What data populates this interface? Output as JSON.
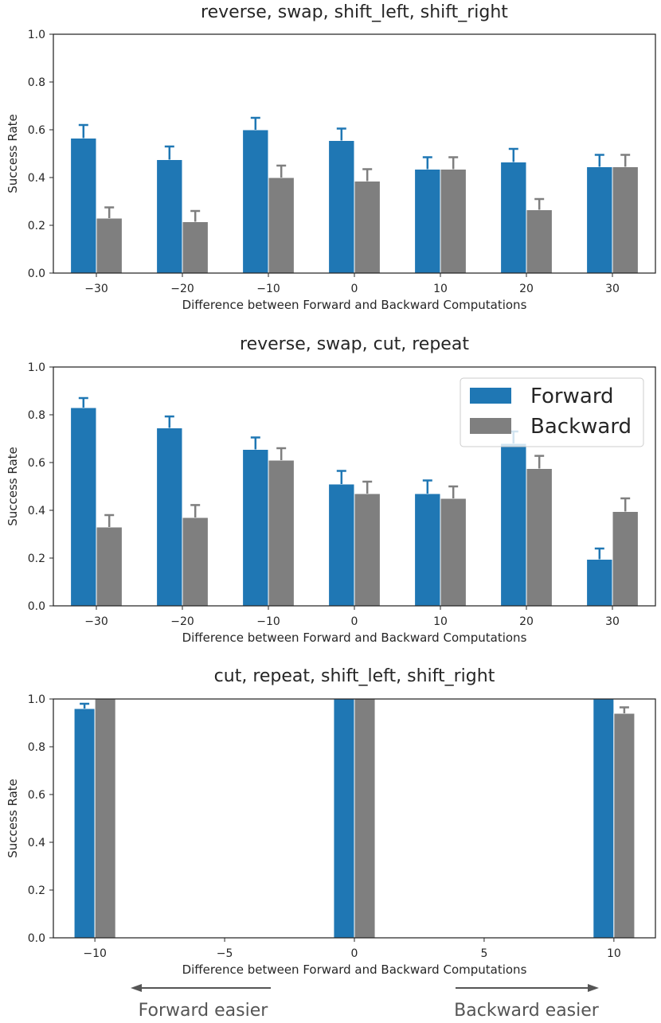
{
  "colors": {
    "forward": "#1f77b4",
    "backward": "#7f7f7f",
    "error_forward": "#1f77b4",
    "error_backward": "#7f7f7f",
    "arrow": "#555555"
  },
  "chart_data": [
    {
      "type": "bar",
      "title": "reverse, swap, shift_left, shift_right",
      "xlabel": "Difference between Forward and Backward Computations",
      "ylabel": "Success Rate",
      "ylim": [
        0,
        1.0
      ],
      "yticks": [
        "0.0",
        "0.2",
        "0.4",
        "0.6",
        "0.8",
        "1.0"
      ],
      "categorical": true,
      "categories": [
        "−30",
        "−20",
        "−10",
        "0",
        "10",
        "20",
        "30"
      ],
      "series": [
        {
          "name": "Forward",
          "values": [
            0.565,
            0.475,
            0.6,
            0.555,
            0.435,
            0.465,
            0.445
          ],
          "errors": [
            0.055,
            0.055,
            0.05,
            0.05,
            0.05,
            0.055,
            0.05
          ]
        },
        {
          "name": "Backward",
          "values": [
            0.23,
            0.215,
            0.4,
            0.385,
            0.435,
            0.265,
            0.445
          ],
          "errors": [
            0.045,
            0.045,
            0.05,
            0.05,
            0.05,
            0.045,
            0.05
          ]
        }
      ],
      "legend": null
    },
    {
      "type": "bar",
      "title": "reverse, swap, cut, repeat",
      "xlabel": "Difference between Forward and Backward Computations",
      "ylabel": "Success Rate",
      "ylim": [
        0,
        1.0
      ],
      "yticks": [
        "0.0",
        "0.2",
        "0.4",
        "0.6",
        "0.8",
        "1.0"
      ],
      "categorical": true,
      "categories": [
        "−30",
        "−20",
        "−10",
        "0",
        "10",
        "20",
        "30"
      ],
      "series": [
        {
          "name": "Forward",
          "values": [
            0.83,
            0.745,
            0.655,
            0.51,
            0.47,
            0.68,
            0.195
          ],
          "errors": [
            0.04,
            0.048,
            0.05,
            0.055,
            0.055,
            0.05,
            0.045
          ]
        },
        {
          "name": "Backward",
          "values": [
            0.33,
            0.37,
            0.61,
            0.47,
            0.45,
            0.575,
            0.395
          ],
          "errors": [
            0.05,
            0.052,
            0.05,
            0.05,
            0.05,
            0.053,
            0.055
          ]
        }
      ],
      "legend": {
        "position": "top-right",
        "entries": [
          "Forward",
          "Backward"
        ]
      }
    },
    {
      "type": "bar",
      "title": "cut, repeat, shift_left, shift_right",
      "xlabel": "Difference between Forward and Backward Computations",
      "ylabel": "Success Rate",
      "ylim": [
        0,
        1.0
      ],
      "xlim": [
        -11.6,
        11.6
      ],
      "yticks": [
        "0.0",
        "0.2",
        "0.4",
        "0.6",
        "0.8",
        "1.0"
      ],
      "categorical": false,
      "x": [
        -10,
        0,
        10
      ],
      "xticks": [
        -10,
        -5,
        0,
        5,
        10
      ],
      "xtick_labels": [
        "−10",
        "−5",
        "0",
        "5",
        "10"
      ],
      "series": [
        {
          "name": "Forward",
          "values": [
            0.96,
            1.0,
            1.0
          ],
          "errors": [
            0.02,
            0,
            0
          ]
        },
        {
          "name": "Backward",
          "values": [
            1.0,
            1.0,
            0.94
          ],
          "errors": [
            0,
            0,
            0.025
          ]
        }
      ],
      "legend": null
    }
  ],
  "annotations": {
    "forward_easier": "Forward easier",
    "backward_easier": "Backward easier"
  }
}
